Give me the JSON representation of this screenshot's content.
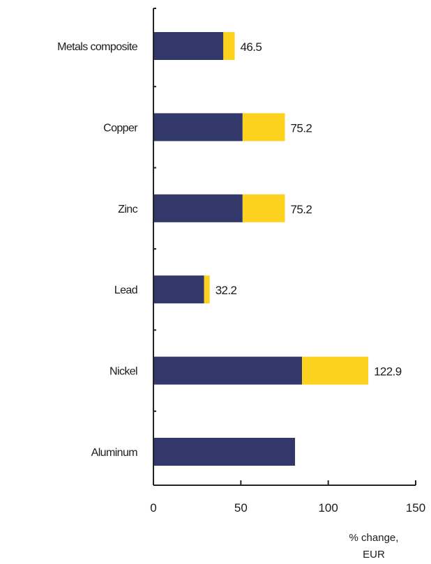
{
  "chart_data": {
    "type": "bar",
    "orientation": "horizontal",
    "stacked": true,
    "categories": [
      "Metals composite",
      "Copper",
      "Zinc",
      "Lead",
      "Nickel",
      "Aluminum"
    ],
    "series": [
      {
        "color": "#33386b",
        "values": [
          40,
          51,
          51,
          29,
          85,
          81
        ]
      },
      {
        "color": "#fdd21f",
        "values": [
          6.5,
          24.2,
          24.2,
          3.2,
          37.9,
          0
        ]
      }
    ],
    "totals": [
      46.5,
      75.2,
      75.2,
      32.2,
      122.9,
      81
    ],
    "data_labels": [
      "46.5",
      "75.2",
      "75.2",
      "32.2",
      "122.9",
      ""
    ],
    "xlim": [
      0,
      150
    ],
    "xticks": [
      0,
      50,
      100,
      150
    ],
    "xtick_labels": [
      "0",
      "50",
      "100",
      "150"
    ],
    "xlabel_lines": [
      "% change,",
      "EUR"
    ],
    "grid": false,
    "legend": "none"
  }
}
